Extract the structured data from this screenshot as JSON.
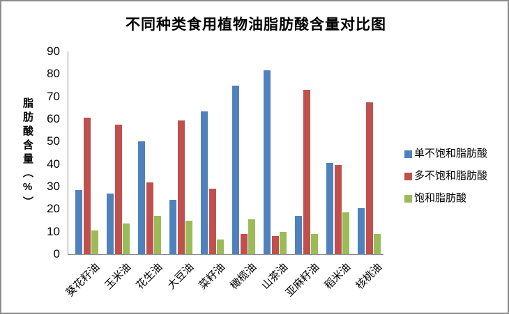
{
  "window": {
    "background": "#FFFFFF",
    "border_color": "#8C8C8C"
  },
  "chart_data": {
    "type": "bar",
    "title": "不同种类食用植物油脂肪酸含量对比图",
    "ylabel": "脂肪酸含量（%）",
    "xlabel": "",
    "categories": [
      "葵花籽油",
      "玉米油",
      "花生油",
      "大豆油",
      "菜籽油",
      "橄榄油",
      "山茶油",
      "亚麻籽油",
      "稻米油",
      "核桃油"
    ],
    "series": [
      {
        "name": "单不饱和脂肪酸",
        "color": "#4F81BD",
        "values": [
          28.5,
          27,
          50,
          24,
          63.5,
          75,
          81.5,
          17,
          40.5,
          20.5
        ]
      },
      {
        "name": "多不饱和脂肪酸",
        "color": "#C0504D",
        "values": [
          60.5,
          57.5,
          32,
          59.5,
          29,
          9,
          8,
          73,
          39.5,
          67.5
        ]
      },
      {
        "name": "饱和脂肪酸",
        "color": "#9BBB59",
        "values": [
          10.5,
          13.5,
          17,
          15,
          6.5,
          15.5,
          10,
          9,
          18.5,
          9
        ]
      }
    ],
    "ylim": [
      0,
      90
    ],
    "yticks": [
      0,
      10,
      20,
      30,
      40,
      50,
      60,
      70,
      80,
      90
    ],
    "grid": false,
    "legend_position": "right",
    "axis_color": "#8A8A8A"
  }
}
